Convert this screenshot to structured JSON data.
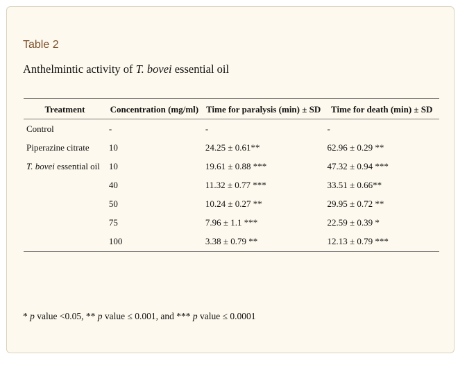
{
  "panel": {
    "label": "Table 2",
    "caption_prefix": "Anthelmintic activity of ",
    "caption_italic": "T. bovei",
    "caption_suffix": " essential oil"
  },
  "table": {
    "headers": [
      "Treatment",
      "Concentration (mg/ml)",
      "Time for paralysis (min) ± SD",
      "Time for death (min) ± SD"
    ],
    "rows": [
      {
        "treatment": "Control",
        "concentration": "-",
        "paralysis": "-",
        "death": "-"
      },
      {
        "treatment": "Piperazine citrate",
        "concentration": "10",
        "paralysis": "24.25 ± 0.61**",
        "death": "62.96 ± 0.29 **"
      },
      {
        "treatment_italic": "T. bovei",
        "treatment_rest": " essential oil",
        "concentration": "10",
        "paralysis": "19.61 ± 0.88 ***",
        "death": "47.32 ± 0.94 ***"
      },
      {
        "treatment": "",
        "concentration": "40",
        "paralysis": "11.32 ± 0.77 ***",
        "death": "33.51 ± 0.66**"
      },
      {
        "treatment": "",
        "concentration": "50",
        "paralysis": "10.24 ± 0.27 **",
        "death": "29.95 ± 0.72 **"
      },
      {
        "treatment": "",
        "concentration": "75",
        "paralysis": "7.96 ± 1.1 ***",
        "death": "22.59 ± 0.39 *"
      },
      {
        "treatment": "",
        "concentration": "100",
        "paralysis": "3.38 ± 0.79 **",
        "death": "12.13 ± 0.79 ***"
      }
    ]
  },
  "footnote": {
    "p1_prefix": "* ",
    "p_word": "p",
    "p1_suffix": " value <0.05, ** ",
    "p2_suffix": " value ≤ 0.001, and *** ",
    "p3_suffix": " value ≤ 0.0001"
  }
}
